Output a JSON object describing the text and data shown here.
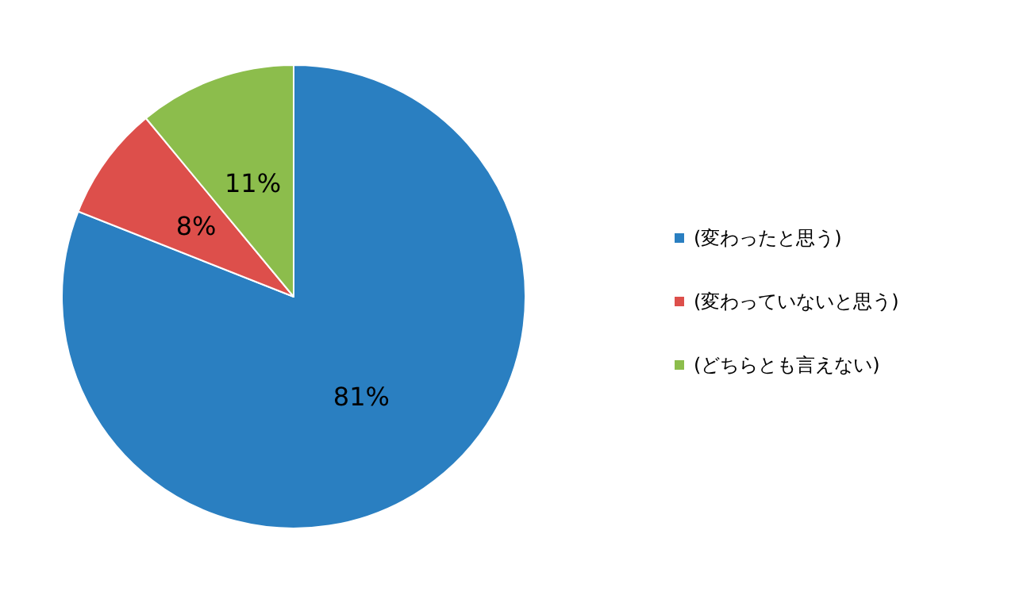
{
  "chart_data": {
    "type": "pie",
    "categories": [
      "(変わったと思う)",
      "(変わっていないと思う)",
      "(どちらとも言えない)"
    ],
    "values": [
      81,
      8,
      11
    ],
    "colors": [
      "#2a7fc1",
      "#dd4f4b",
      "#8cbd4c"
    ],
    "value_labels": [
      "81%",
      "8%",
      "11%"
    ],
    "legend": "right"
  }
}
